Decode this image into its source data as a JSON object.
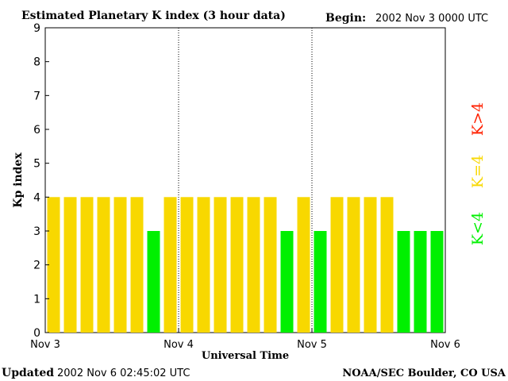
{
  "header": {
    "title": "Estimated Planetary K index (3 hour data)",
    "begin_label": "Begin:",
    "begin_value": "2002 Nov 3 0000 UTC"
  },
  "footer": {
    "updated_label": "Updated",
    "updated_value": "2002 Nov  6 02:45:02 UTC",
    "source": "NOAA/SEC Boulder, CO USA"
  },
  "legend": {
    "high": "K>4",
    "equal": "K=4",
    "low": "K<4"
  },
  "colors": {
    "low": "#00f000",
    "equal": "#f8d800",
    "high": "#ff2000",
    "frame": "#000000"
  },
  "chart_data": {
    "type": "bar",
    "title": "Estimated Planetary K index (3 hour data)",
    "xlabel": "Universal Time",
    "ylabel": "Kp index",
    "ylim": [
      0,
      9
    ],
    "yticks": [
      0,
      1,
      2,
      3,
      4,
      5,
      6,
      7,
      8,
      9
    ],
    "xticks": [
      "Nov 3",
      "Nov 4",
      "Nov 5",
      "Nov 6"
    ],
    "grid": "vertical day separators (dotted)",
    "values": [
      4,
      4,
      4,
      4,
      4,
      4,
      3,
      4,
      4,
      4,
      4,
      4,
      4,
      4,
      3,
      4,
      3,
      4,
      4,
      4,
      4,
      3,
      3,
      3
    ]
  }
}
